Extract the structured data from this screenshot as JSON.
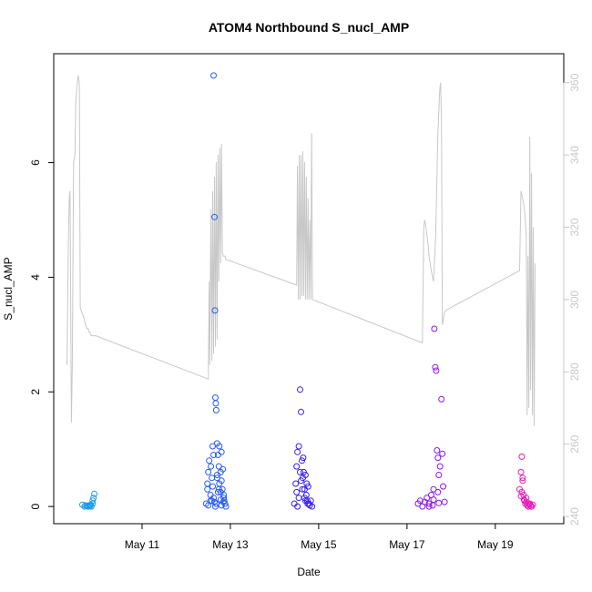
{
  "chart_data": {
    "type": "scatter",
    "title": "ATOM4 Northbound S_nucl_AMP",
    "xlabel": "Date",
    "ylabel": "S_nucl_AMP",
    "x_ticks": [
      "May 11",
      "May 13",
      "May 15",
      "May 17",
      "May 19"
    ],
    "x_tick_day": [
      11,
      13,
      15,
      17,
      19
    ],
    "x_range_day": [
      9.0,
      20.55
    ],
    "y_ticks": [
      0,
      2,
      4,
      6
    ],
    "ylim": [
      -0.3,
      7.9
    ],
    "y2_ticks": [
      240,
      260,
      280,
      300,
      320,
      340,
      360
    ],
    "y2lim": [
      238,
      368
    ],
    "colors": {
      "line": "#c8c8c8",
      "points": [
        "#1f9ae8",
        "#2a5cf0",
        "#3a20e6",
        "#8a1ae8",
        "#e81ab8"
      ]
    },
    "series": [
      {
        "type": "points",
        "axis": "left",
        "color_index": 0,
        "day": [
          9.65,
          9.7,
          9.72,
          9.75,
          9.78,
          9.8,
          9.82,
          9.85,
          9.88,
          9.9,
          9.92,
          9.84,
          9.88
        ],
        "y": [
          0.03,
          0.0,
          0.02,
          0.01,
          0.0,
          0.02,
          0.01,
          0.0,
          0.1,
          0.15,
          0.22,
          0.03,
          0.05
        ]
      },
      {
        "type": "points",
        "axis": "left",
        "color_index": 1,
        "day": [
          12.45,
          12.48,
          12.5,
          12.52,
          12.55,
          12.58,
          12.6,
          12.62,
          12.64,
          12.65,
          12.66,
          12.67,
          12.68,
          12.7,
          12.72,
          12.74,
          12.75,
          12.78,
          12.8,
          12.82,
          12.85,
          12.88,
          12.9,
          12.55,
          12.6,
          12.62,
          12.64,
          12.7,
          12.72,
          12.75,
          12.78,
          12.8,
          12.83,
          12.85,
          12.5,
          12.58,
          12.66,
          12.68,
          12.74,
          12.8,
          12.86,
          12.48,
          12.56,
          12.62,
          12.7,
          12.78,
          12.84
        ],
        "y": [
          0.05,
          0.3,
          0.6,
          0.8,
          0.1,
          0.5,
          1.05,
          7.52,
          5.05,
          3.42,
          1.9,
          1.8,
          1.68,
          1.1,
          0.9,
          0.7,
          1.05,
          0.6,
          0.45,
          0.3,
          0.15,
          0.05,
          0.0,
          0.2,
          0.35,
          0.15,
          0.08,
          0.55,
          0.25,
          0.4,
          0.12,
          0.95,
          0.65,
          0.2,
          0.02,
          0.1,
          0.0,
          0.05,
          0.3,
          0.02,
          0.1,
          0.4,
          0.7,
          0.9,
          0.5,
          0.25,
          0.08
        ]
      },
      {
        "type": "points",
        "axis": "left",
        "color_index": 2,
        "day": [
          14.45,
          14.48,
          14.5,
          14.52,
          14.55,
          14.58,
          14.6,
          14.62,
          14.64,
          14.66,
          14.68,
          14.7,
          14.72,
          14.74,
          14.76,
          14.78,
          14.8,
          14.82,
          14.85,
          14.5,
          14.55,
          14.6,
          14.65,
          14.7,
          14.75,
          14.52,
          14.58,
          14.63,
          14.68,
          14.73
        ],
        "y": [
          0.05,
          0.4,
          0.7,
          0.95,
          1.05,
          2.04,
          1.65,
          0.8,
          0.5,
          0.6,
          0.3,
          0.55,
          0.2,
          0.1,
          0.35,
          0.05,
          0.02,
          0.1,
          0.0,
          0.25,
          0.15,
          0.45,
          0.85,
          0.1,
          0.05,
          0.0,
          0.6,
          0.3,
          0.15,
          0.4
        ]
      },
      {
        "type": "points",
        "axis": "left",
        "color_index": 3,
        "day": [
          17.25,
          17.3,
          17.35,
          17.4,
          17.45,
          17.5,
          17.55,
          17.6,
          17.62,
          17.64,
          17.66,
          17.68,
          17.7,
          17.72,
          17.75,
          17.78,
          17.8,
          17.82,
          17.85,
          17.5,
          17.6,
          17.7,
          17.58,
          17.72
        ],
        "y": [
          0.05,
          0.1,
          0.0,
          0.08,
          0.15,
          0.05,
          0.2,
          0.3,
          3.1,
          2.43,
          2.37,
          0.98,
          0.85,
          0.55,
          0.7,
          1.87,
          0.92,
          0.35,
          0.08,
          0.0,
          0.12,
          0.25,
          0.02,
          0.06
        ]
      },
      {
        "type": "points",
        "axis": "left",
        "color_index": 4,
        "day": [
          19.55,
          19.58,
          19.6,
          19.62,
          19.64,
          19.66,
          19.68,
          19.7,
          19.72,
          19.75,
          19.78,
          19.8,
          19.82,
          19.85,
          19.6,
          19.65,
          19.7,
          19.76,
          19.58,
          19.62
        ],
        "y": [
          0.3,
          0.6,
          0.87,
          0.5,
          0.2,
          0.1,
          0.05,
          0.15,
          0.02,
          0.0,
          0.05,
          0.02,
          0.0,
          0.03,
          0.25,
          0.12,
          0.08,
          0.04,
          0.18,
          0.45
        ]
      },
      {
        "type": "line",
        "axis": "right",
        "day": [
          9.3,
          9.33,
          9.35,
          9.37,
          9.4,
          9.42,
          9.45,
          9.48,
          9.5,
          9.52,
          9.55,
          9.58,
          9.6,
          9.62,
          9.65,
          9.68,
          9.7,
          9.72,
          9.75,
          9.78,
          9.8,
          9.82,
          9.85,
          9.88,
          9.9,
          9.92,
          9.95,
          12.5,
          12.52,
          12.53,
          12.56,
          12.58,
          12.6,
          12.62,
          12.64,
          12.66,
          12.68,
          12.7,
          12.72,
          12.74,
          12.76,
          12.78,
          12.8,
          12.82,
          12.84,
          12.86,
          12.88,
          12.9,
          12.92,
          14.5,
          14.52,
          14.54,
          14.56,
          14.58,
          14.6,
          14.62,
          14.64,
          14.66,
          14.68,
          14.7,
          14.72,
          14.74,
          14.76,
          14.78,
          14.8,
          14.82,
          14.84,
          14.86,
          17.35,
          17.38,
          17.4,
          17.43,
          17.45,
          17.48,
          17.5,
          17.55,
          17.6,
          17.65,
          17.7,
          17.72,
          17.74,
          17.76,
          17.78,
          17.8,
          17.82,
          17.84,
          17.87,
          19.55,
          19.58,
          19.62,
          19.66,
          19.7,
          19.72,
          19.74,
          19.76,
          19.78,
          19.8,
          19.82,
          19.84,
          19.86,
          19.88,
          19.9
        ],
        "y": [
          282,
          315,
          328,
          330,
          266,
          282,
          338,
          340,
          355,
          358,
          362,
          360,
          298,
          297,
          296,
          295,
          294,
          293,
          292,
          292,
          291,
          291,
          290,
          290,
          290,
          290,
          290,
          278,
          305,
          282,
          325,
          283,
          330,
          285,
          334,
          287,
          338,
          289,
          340,
          305,
          342,
          310,
          343,
          313,
          312,
          312,
          312,
          311,
          311,
          304,
          337,
          300,
          340,
          300,
          340,
          301,
          341,
          301,
          338,
          300,
          334,
          300,
          328,
          300,
          322,
          300,
          346,
          300,
          288,
          320,
          322,
          320,
          318,
          315,
          312,
          308,
          305,
          318,
          346,
          352,
          358,
          360,
          350,
          293,
          294,
          296,
          297,
          308,
          330,
          328,
          325,
          318,
          268,
          312,
          270,
          345,
          275,
          335,
          268,
          320,
          265,
          310,
          304
        ]
      }
    ]
  }
}
